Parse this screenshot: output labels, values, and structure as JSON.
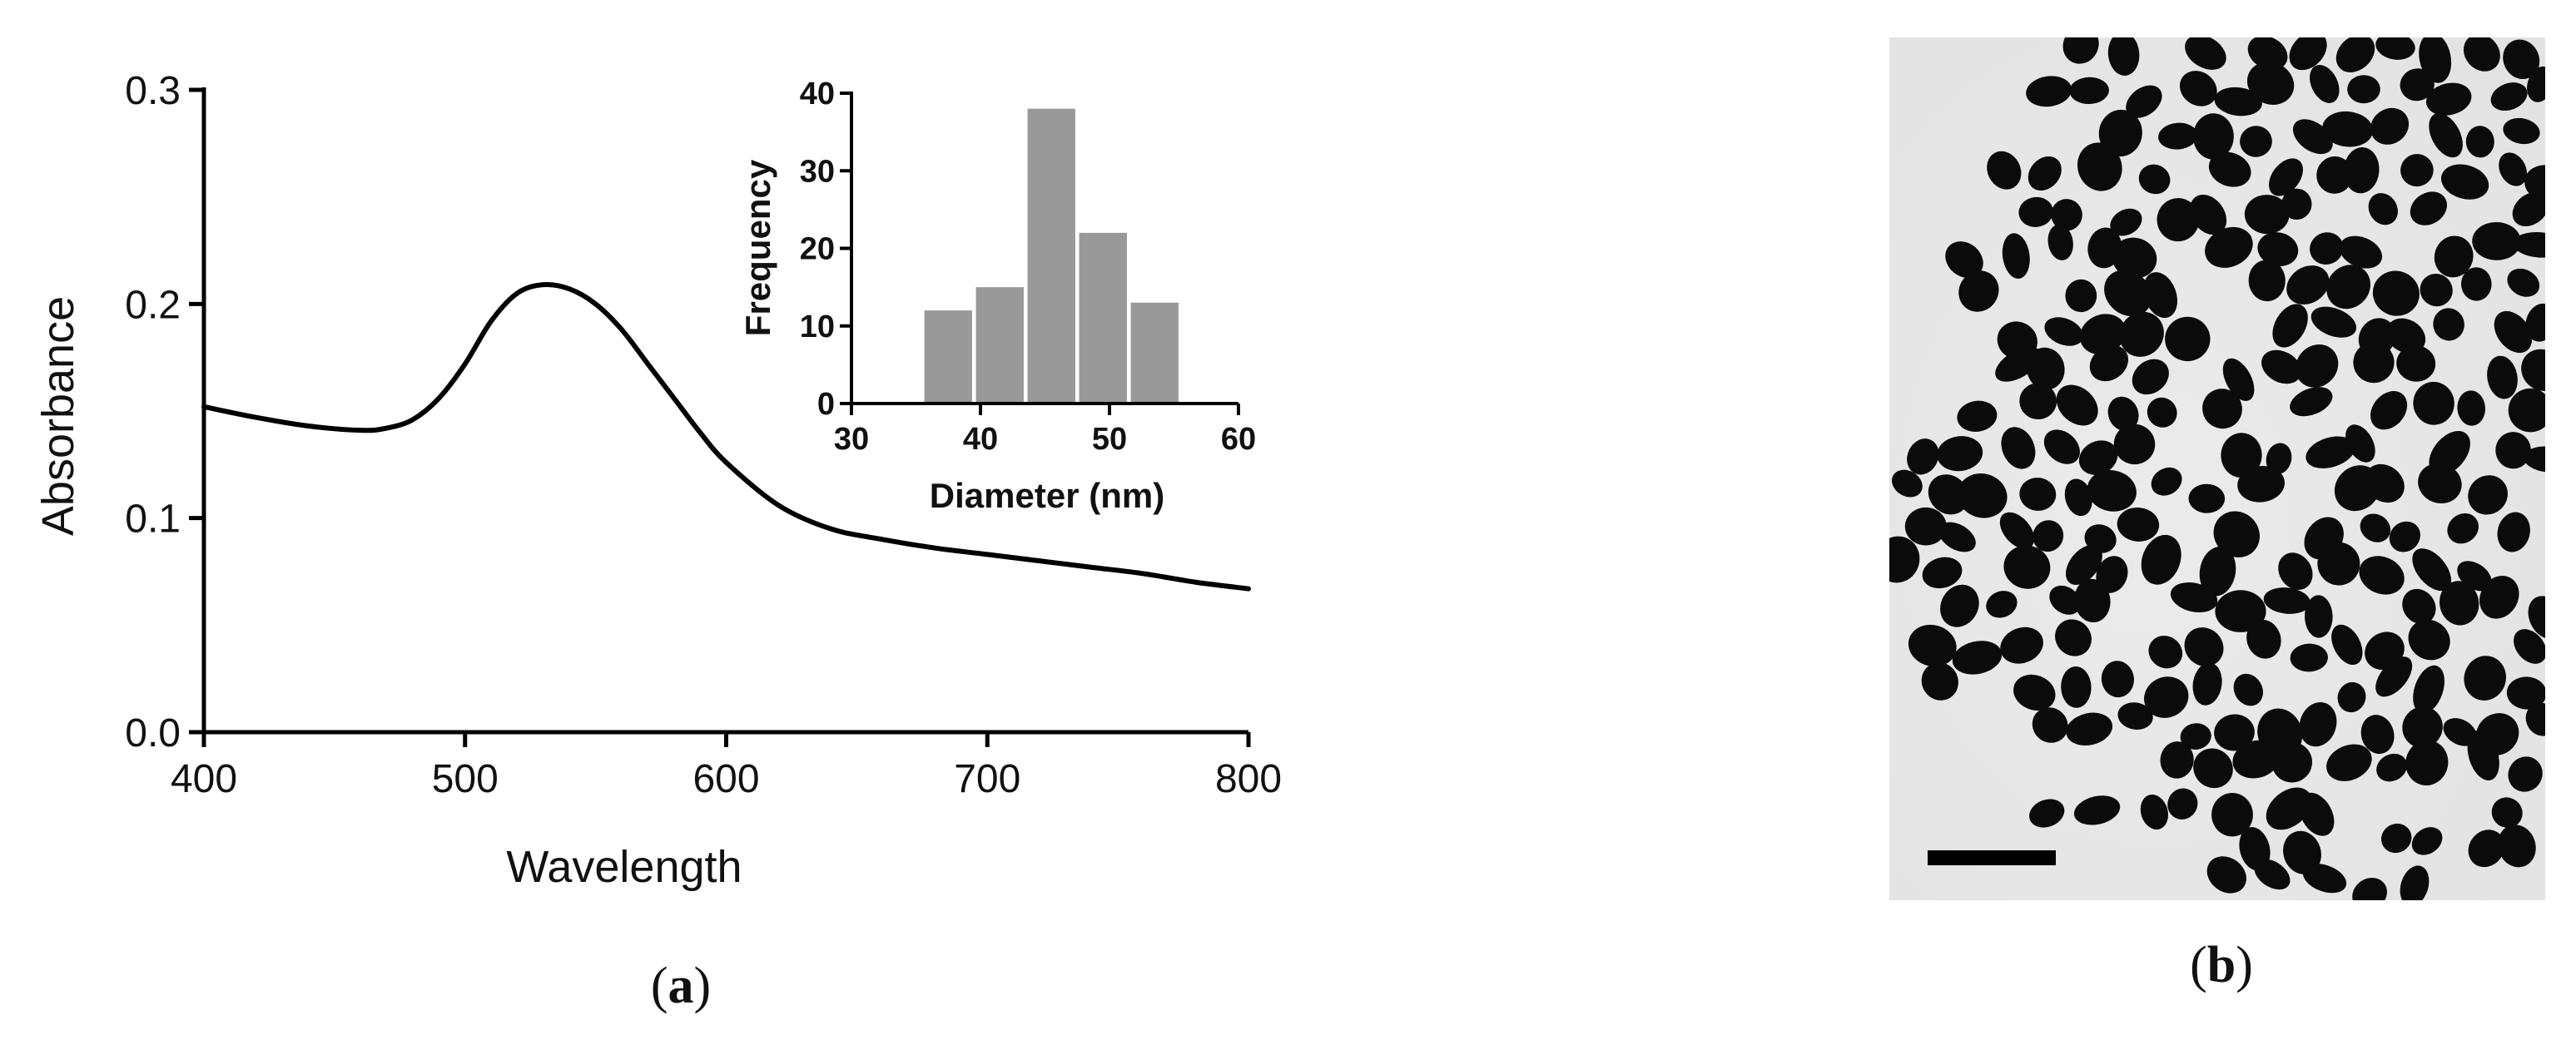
{
  "chart_data": [
    {
      "type": "line",
      "title": "",
      "xlabel": "Wavelength",
      "ylabel": "Absorbance",
      "xlim": [
        400,
        800
      ],
      "ylim": [
        0.0,
        0.3
      ],
      "xticks": [
        400,
        500,
        600,
        700,
        800
      ],
      "yticks": [
        0.0,
        0.1,
        0.2,
        0.3
      ],
      "xtick_labels": [
        "400",
        "500",
        "600",
        "700",
        "800"
      ],
      "ytick_labels": [
        "0.0",
        "0.1",
        "0.2",
        "0.3"
      ],
      "grid": false,
      "series": [
        {
          "color": "#000000",
          "x": [
            400,
            420,
            440,
            460,
            470,
            480,
            490,
            500,
            510,
            520,
            530,
            540,
            550,
            560,
            570,
            580,
            590,
            600,
            620,
            640,
            660,
            680,
            700,
            720,
            740,
            760,
            780,
            800
          ],
          "y": [
            0.152,
            0.147,
            0.143,
            0.141,
            0.142,
            0.146,
            0.156,
            0.172,
            0.192,
            0.205,
            0.209,
            0.207,
            0.2,
            0.188,
            0.172,
            0.156,
            0.14,
            0.126,
            0.106,
            0.095,
            0.09,
            0.086,
            0.083,
            0.08,
            0.077,
            0.074,
            0.07,
            0.067
          ]
        }
      ]
    },
    {
      "type": "bar",
      "title": "",
      "xlabel": "Diameter (nm)",
      "ylabel": "Frequency",
      "xlim": [
        30,
        60
      ],
      "ylim": [
        0,
        40
      ],
      "xticks": [
        30,
        40,
        50,
        60
      ],
      "yticks": [
        0,
        10,
        20,
        30,
        40
      ],
      "xtick_labels": [
        "30",
        "40",
        "50",
        "60"
      ],
      "ytick_labels": [
        "0",
        "10",
        "20",
        "30",
        "40"
      ],
      "bar_color": "#999999",
      "bin_width": 4,
      "categories": [
        "37.5",
        "41.5",
        "45.5",
        "49.5",
        "53.5"
      ],
      "bin_centers": [
        37.5,
        41.5,
        45.5,
        49.5,
        53.5
      ],
      "values": [
        12,
        15,
        38,
        22,
        13
      ]
    }
  ],
  "panels": {
    "a_label_open": "(",
    "a_label_letter": "a",
    "a_label_close": ")",
    "b_label_open": "(",
    "b_label_letter": "b",
    "b_label_close": ")"
  }
}
